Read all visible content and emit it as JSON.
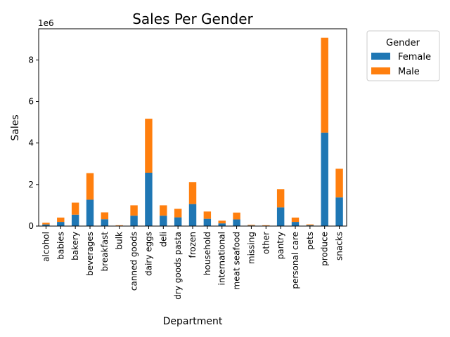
{
  "chart_data": {
    "type": "bar",
    "stacked": true,
    "title": "Sales Per Gender",
    "xlabel": "Department",
    "ylabel": "Sales",
    "y_offset_label": "1e6",
    "ylim": [
      0,
      9.5
    ],
    "y_ticks": [
      0,
      2,
      4,
      6,
      8
    ],
    "legend": {
      "title": "Gender",
      "placement": "outside-top-right"
    },
    "categories": [
      "alcohol",
      "babies",
      "bakery",
      "beverages",
      "breakfast",
      "bulk",
      "canned goods",
      "dairy eggs",
      "deli",
      "dry goods pasta",
      "frozen",
      "household",
      "international",
      "meat seafood",
      "missing",
      "other",
      "pantry",
      "personal care",
      "pets",
      "produce",
      "snacks"
    ],
    "series": [
      {
        "name": "Female",
        "color": "#1f77b4",
        "values": [
          0.08,
          0.2,
          0.55,
          1.27,
          0.33,
          0.02,
          0.5,
          2.57,
          0.5,
          0.42,
          1.06,
          0.35,
          0.13,
          0.32,
          0.03,
          0.02,
          0.9,
          0.2,
          0.04,
          4.5,
          1.38
        ]
      },
      {
        "name": "Male",
        "color": "#ff7f0e",
        "values": [
          0.08,
          0.21,
          0.58,
          1.28,
          0.33,
          0.02,
          0.5,
          2.6,
          0.5,
          0.41,
          1.06,
          0.35,
          0.13,
          0.33,
          0.03,
          0.02,
          0.88,
          0.21,
          0.04,
          4.57,
          1.38
        ]
      }
    ]
  }
}
